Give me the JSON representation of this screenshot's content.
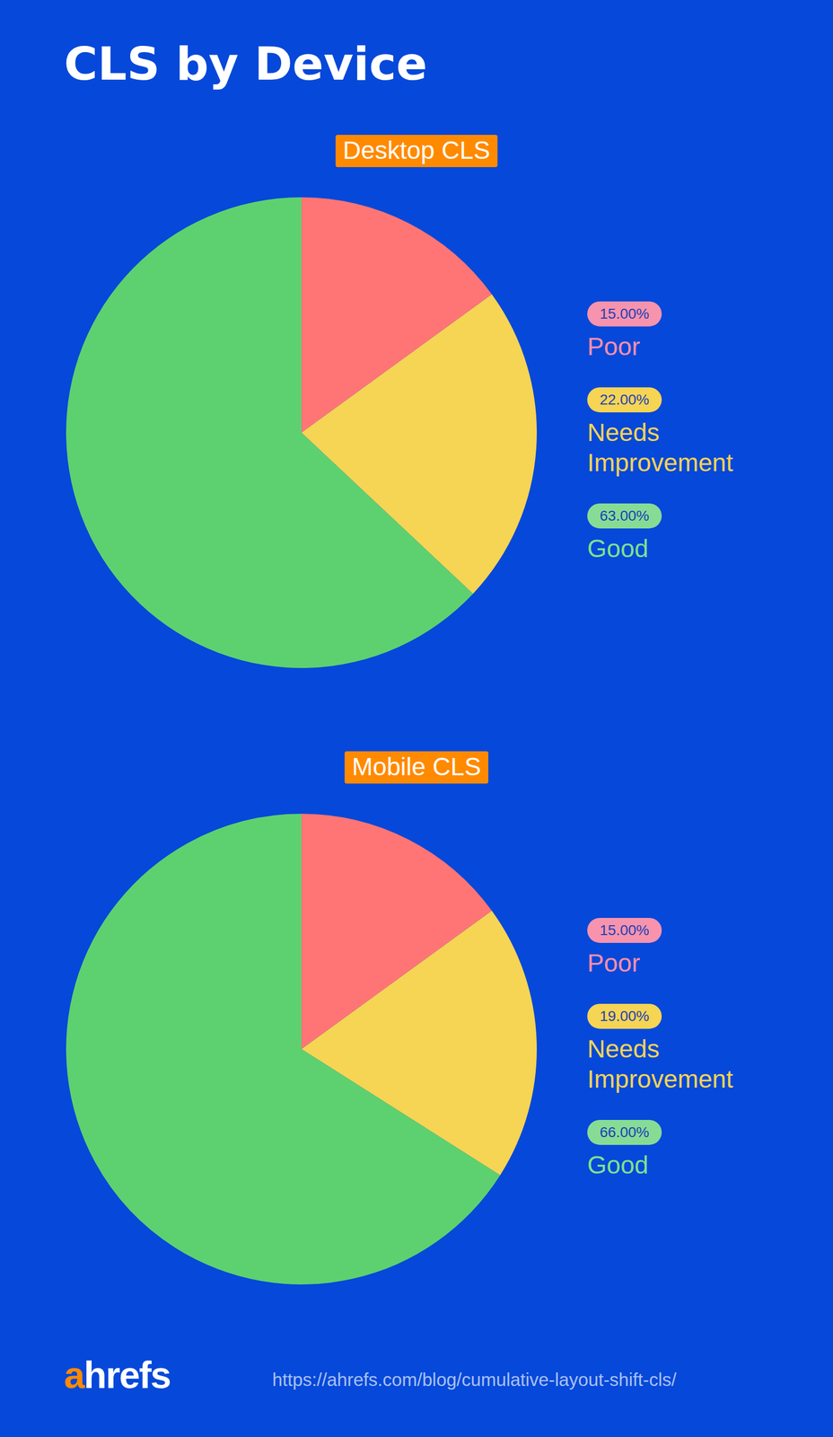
{
  "page": {
    "title": "CLS by Device",
    "logo": "ahrefs",
    "url": "https://ahrefs.com/blog/cumulative-layout-shift-cls/"
  },
  "chart_data": [
    {
      "type": "pie",
      "title": "Desktop CLS",
      "categories": [
        "Poor",
        "Needs Improvement",
        "Good"
      ],
      "values": [
        15,
        22,
        63
      ],
      "value_labels": [
        "15.00%",
        "22.00%",
        "63.00%"
      ],
      "colors": [
        "#ff7575",
        "#f6d454",
        "#5dd16f"
      ],
      "legend": "right"
    },
    {
      "type": "pie",
      "title": "Mobile CLS",
      "categories": [
        "Poor",
        "Needs Improvement",
        "Good"
      ],
      "values": [
        15,
        19,
        66
      ],
      "value_labels": [
        "15.00%",
        "19.00%",
        "66.00%"
      ],
      "colors": [
        "#ff7575",
        "#f6d454",
        "#5dd16f"
      ],
      "legend": "right"
    }
  ]
}
